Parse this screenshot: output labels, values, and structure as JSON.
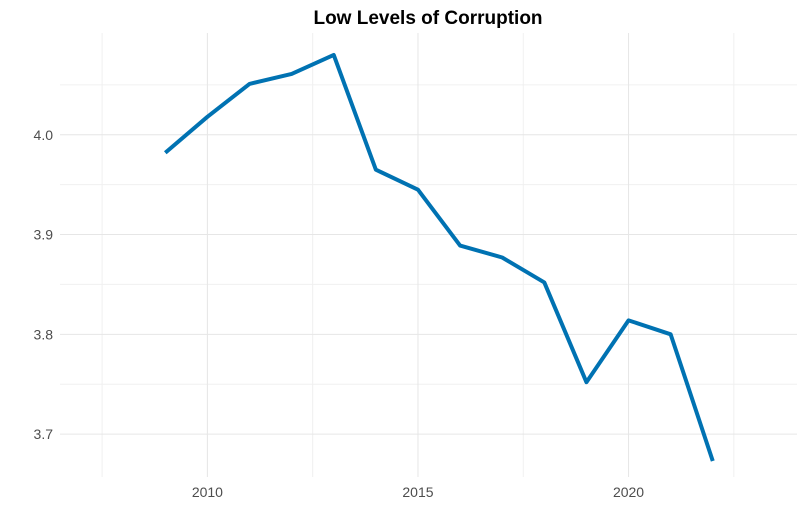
{
  "chart_data": {
    "type": "line",
    "title": "Low Levels of Corruption",
    "xlabel": "",
    "ylabel": "",
    "x": [
      2009,
      2010,
      2011,
      2012,
      2013,
      2014,
      2015,
      2016,
      2017,
      2018,
      2019,
      2020,
      2021,
      2022
    ],
    "series": [
      {
        "values": [
          3.982,
          4.018,
          4.051,
          4.061,
          4.08,
          3.965,
          3.945,
          3.889,
          3.877,
          3.852,
          3.752,
          3.814,
          3.8,
          3.673
        ]
      }
    ],
    "xlim": [
      2006.5,
      2024.0
    ],
    "ylim": [
      3.657,
      4.102
    ],
    "x_ticks": [
      2010,
      2015,
      2020
    ],
    "x_tick_labels": [
      "2010",
      "2015",
      "2020"
    ],
    "x_minor": [
      2007.5,
      2012.5,
      2017.5,
      2022.5
    ],
    "y_ticks": [
      3.7,
      3.8,
      3.9,
      4.0
    ],
    "y_tick_labels": [
      "3.7",
      "3.8",
      "3.9",
      "4.0"
    ],
    "y_minor": [
      3.75,
      3.85,
      3.95,
      4.05
    ],
    "grid": true,
    "legend": "none",
    "line_color": "#0072B2",
    "grid_color": "#e6e6e6"
  }
}
